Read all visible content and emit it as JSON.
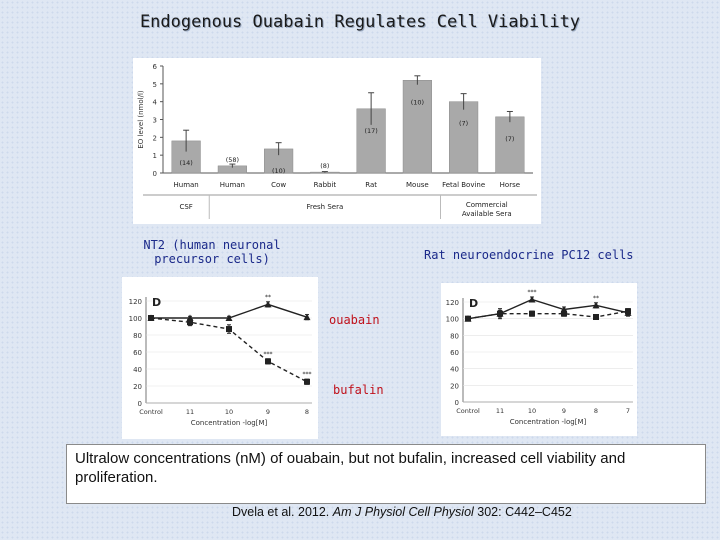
{
  "slide": {
    "title": "Endogenous Ouabain Regulates Cell Viability",
    "left_label_line1": "NT2 (human neuronal",
    "left_label_line2": "precursor cells)",
    "right_label": "Rat neuroendocrine PC12 cells",
    "ouabain_label": "ouabain",
    "bufalin_label": "bufalin",
    "note": "Ultralow concentrations (nM) of ouabain, but not bufalin, increased cell viability and proliferation.",
    "citation_authors": "Dvela et al. 2012.",
    "citation_journal": "Am J Physiol Cell Physiol",
    "citation_pages": "302: C442–C452"
  },
  "chart_data": [
    {
      "type": "bar",
      "ylabel": "EO level (nmol/l)",
      "ylim": [
        0,
        6
      ],
      "yticks": [
        0,
        1,
        2,
        3,
        4,
        5,
        6
      ],
      "categories": [
        "Human",
        "Human",
        "Cow",
        "Rabbit",
        "Rat",
        "Mouse",
        "Fetal Bovine",
        "Horse"
      ],
      "values": [
        1.8,
        0.4,
        1.35,
        0.05,
        3.6,
        5.2,
        4.0,
        3.15
      ],
      "errors": [
        0.6,
        0.1,
        0.35,
        0.03,
        0.9,
        0.25,
        0.45,
        0.3
      ],
      "n_labels": [
        "(14)",
        "(58)",
        "(10)",
        "(8)",
        "(17)",
        "(10)",
        "(7)",
        "(7)"
      ],
      "groups": [
        {
          "label": "CSF",
          "count": 1
        },
        {
          "label": "Fresh Sera",
          "count": 5
        },
        {
          "label": "Commercial Available Sera",
          "count": 2
        }
      ],
      "bar_color": "#a9a9a9"
    },
    {
      "type": "line",
      "panel_letter": "D",
      "xlabel": "Concentration -log[M]",
      "categories": [
        "Control",
        "11",
        "10",
        "9",
        "8"
      ],
      "ylim": [
        0,
        120
      ],
      "yticks": [
        0,
        20,
        40,
        60,
        80,
        100,
        120
      ],
      "series": [
        {
          "style": "solid",
          "marker": "triangle",
          "values": [
            100,
            100,
            100,
            116,
            101
          ],
          "errors": [
            2,
            2,
            2,
            3,
            3
          ],
          "sig": [
            "",
            "",
            "",
            "**",
            ""
          ]
        },
        {
          "style": "dashed",
          "marker": "square",
          "values": [
            100,
            95,
            87,
            49,
            25
          ],
          "errors": [
            2,
            4,
            5,
            3,
            3
          ],
          "sig": [
            "",
            "",
            "",
            "***",
            "***"
          ]
        }
      ]
    },
    {
      "type": "line",
      "panel_letter": "D",
      "xlabel": "Concentration -log[M]",
      "categories": [
        "Control",
        "11",
        "10",
        "9",
        "8",
        "7"
      ],
      "ylim": [
        0,
        120
      ],
      "yticks": [
        0,
        20,
        40,
        60,
        80,
        100,
        120
      ],
      "series": [
        {
          "style": "solid",
          "marker": "triangle",
          "values": [
            100,
            106,
            123,
            111,
            116,
            107
          ],
          "errors": [
            2,
            6,
            3,
            3,
            3,
            4
          ],
          "sig": [
            "",
            "",
            "***",
            "",
            "**",
            ""
          ]
        },
        {
          "style": "dashed",
          "marker": "square",
          "values": [
            100,
            106,
            106,
            106,
            102,
            109
          ],
          "errors": [
            2,
            4,
            3,
            3,
            3,
            3
          ],
          "sig": [
            "",
            "",
            "",
            "",
            "",
            ""
          ]
        }
      ]
    }
  ]
}
